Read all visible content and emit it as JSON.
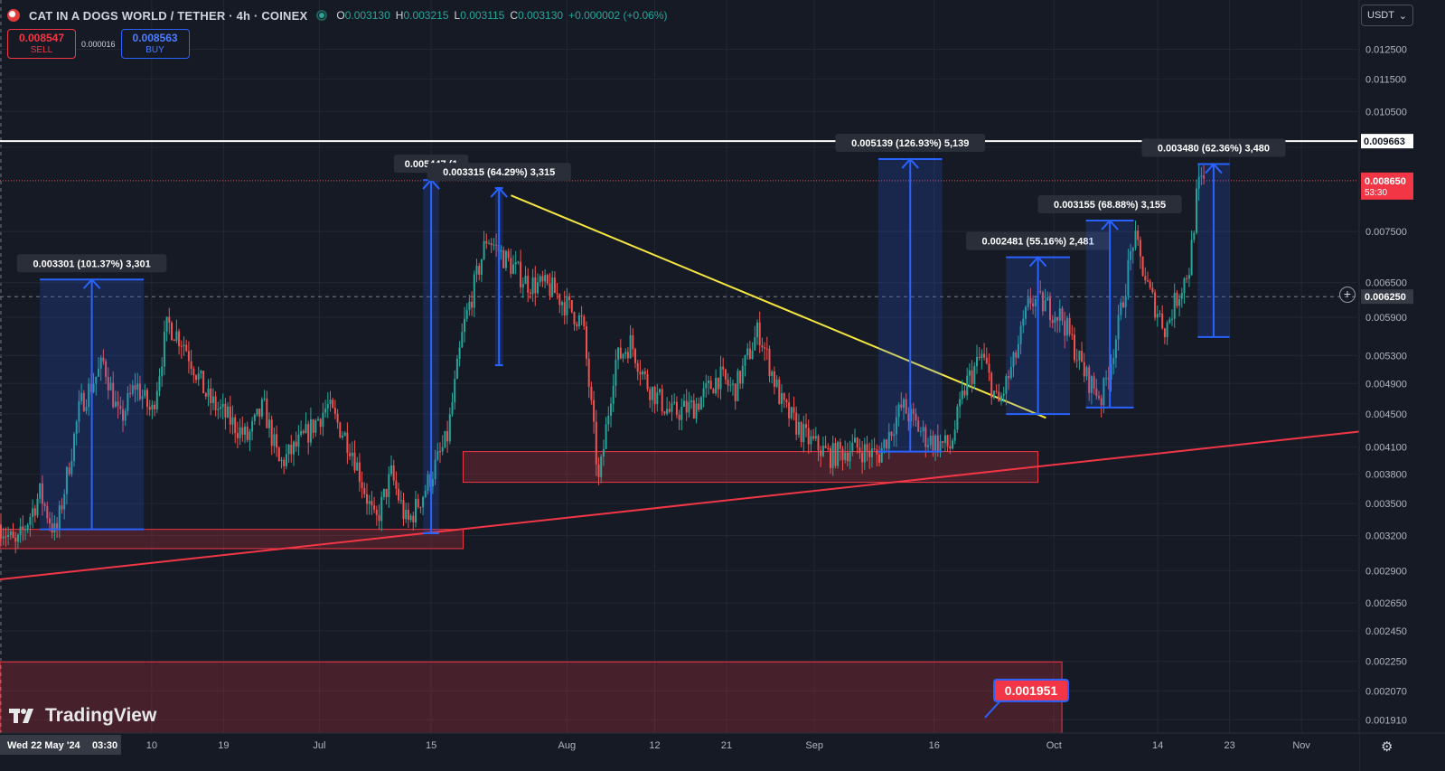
{
  "header": {
    "title": "CAT IN A DOGS WORLD / TETHER · 4h · COINEX",
    "ohlc": [
      {
        "k": "O",
        "v": "0.003130"
      },
      {
        "k": "H",
        "v": "0.003215"
      },
      {
        "k": "L",
        "v": "0.003115"
      },
      {
        "k": "C",
        "v": "0.003130"
      },
      {
        "k": "",
        "v": "+0.000002 (+0.06%)"
      }
    ]
  },
  "trade": {
    "sell_price": "0.008547",
    "sell_label": "SELL",
    "spread": "0.000016",
    "buy_price": "0.008563",
    "buy_label": "BUY"
  },
  "currency_selector": "USDT",
  "watermark": "TradingView",
  "colors": {
    "background": "#161a25",
    "up": "#26a69a",
    "down": "#ef5350",
    "zone": "#f23645",
    "measure": "#2962ff",
    "trendline_down": "#f5e642",
    "trendline_up": "#f23645",
    "resistance": "#ffffff",
    "grid": "#232734"
  },
  "chart_data": {
    "type": "candlestick",
    "symbol": "CAT IN A DOGS WORLD / TETHER",
    "interval": "4h",
    "exchange": "COINEX",
    "y_scale": "log",
    "ylim": [
      0.00184,
      0.0131
    ],
    "y_ticks": [
      "0.012500",
      "0.011500",
      "0.010500",
      "0.009663",
      "0.008650",
      "0.007500",
      "0.006500",
      "0.006250",
      "0.005900",
      "0.005300",
      "0.004900",
      "0.004500",
      "0.004100",
      "0.003800",
      "0.003500",
      "0.003200",
      "0.002900",
      "0.002650",
      "0.002450",
      "0.002250",
      "0.002070",
      "0.001910"
    ],
    "y_tick_values": [
      0.0125,
      0.0115,
      0.0105,
      0.0095,
      0.0075,
      0.0065,
      0.0059,
      0.0053,
      0.0049,
      0.0045,
      0.0041,
      0.0038,
      0.0035,
      0.0032,
      0.0029,
      0.00265,
      0.00245,
      0.00225,
      0.00207,
      0.00191
    ],
    "x_ticks": [
      "Wed 22 May '24",
      "03:30",
      "10",
      "19",
      "Jul",
      "15",
      "Aug",
      "12",
      "21",
      "Sep",
      "16",
      "Oct",
      "14",
      "23",
      "Nov"
    ],
    "x_start": "2024-05-22",
    "x_tick_dates": [
      "2024-06-10",
      "2024-06-19",
      "2024-07-01",
      "2024-07-15",
      "2024-08-01",
      "2024-08-12",
      "2024-08-21",
      "2024-09-01",
      "2024-09-16",
      "2024-10-01",
      "2024-10-14",
      "2024-10-23",
      "2024-11-01"
    ],
    "x_end": "2024-11-08",
    "current_price": {
      "label": "0.008650",
      "countdown": "53:30",
      "value": 0.00865
    },
    "crosshair_price": {
      "label": "0.006250",
      "value": 0.00625
    },
    "resistance_label": "0.009663",
    "resistance_level": 0.009663,
    "path": [
      [
        "2024-05-22",
        0.0033
      ],
      [
        "2024-05-24",
        0.0031
      ],
      [
        "2024-05-27",
        0.0036
      ],
      [
        "2024-05-29",
        0.0032
      ],
      [
        "2024-06-01",
        0.0046
      ],
      [
        "2024-06-04",
        0.0052
      ],
      [
        "2024-06-06",
        0.0044
      ],
      [
        "2024-06-08",
        0.0049
      ],
      [
        "2024-06-10",
        0.0045
      ],
      [
        "2024-06-12",
        0.0058
      ],
      [
        "2024-06-14",
        0.0055
      ],
      [
        "2024-06-17",
        0.0047
      ],
      [
        "2024-06-20",
        0.0044
      ],
      [
        "2024-06-22",
        0.0042
      ],
      [
        "2024-06-24",
        0.0046
      ],
      [
        "2024-06-26",
        0.0039
      ],
      [
        "2024-06-29",
        0.0042
      ],
      [
        "2024-07-02",
        0.0046
      ],
      [
        "2024-07-05",
        0.0041
      ],
      [
        "2024-07-08",
        0.0033
      ],
      [
        "2024-07-10",
        0.0038
      ],
      [
        "2024-07-12",
        0.0033
      ],
      [
        "2024-07-14",
        0.0036
      ],
      [
        "2024-07-17",
        0.0042
      ],
      [
        "2024-07-19",
        0.0057
      ],
      [
        "2024-07-22",
        0.0074
      ],
      [
        "2024-07-24",
        0.007
      ],
      [
        "2024-07-27",
        0.0065
      ],
      [
        "2024-07-30",
        0.0064
      ],
      [
        "2024-08-03",
        0.0058
      ],
      [
        "2024-08-05",
        0.0037
      ],
      [
        "2024-08-07",
        0.0052
      ],
      [
        "2024-08-09",
        0.0055
      ],
      [
        "2024-08-11",
        0.0049
      ],
      [
        "2024-08-14",
        0.0045
      ],
      [
        "2024-08-17",
        0.0046
      ],
      [
        "2024-08-20",
        0.005
      ],
      [
        "2024-08-22",
        0.0048
      ],
      [
        "2024-08-25",
        0.0057
      ],
      [
        "2024-08-28",
        0.0046
      ],
      [
        "2024-08-31",
        0.0042
      ],
      [
        "2024-09-03",
        0.004
      ],
      [
        "2024-09-06",
        0.0041
      ],
      [
        "2024-09-09",
        0.004
      ],
      [
        "2024-09-12",
        0.0046
      ],
      [
        "2024-09-15",
        0.0042
      ],
      [
        "2024-09-18",
        0.0041
      ],
      [
        "2024-09-20",
        0.0049
      ],
      [
        "2024-09-22",
        0.0053
      ],
      [
        "2024-09-24",
        0.0046
      ],
      [
        "2024-09-26",
        0.0052
      ],
      [
        "2024-09-28",
        0.0062
      ],
      [
        "2024-09-30",
        0.0061
      ],
      [
        "2024-10-02",
        0.0059
      ],
      [
        "2024-10-05",
        0.005
      ],
      [
        "2024-10-07",
        0.0047
      ],
      [
        "2024-10-09",
        0.0057
      ],
      [
        "2024-10-11",
        0.0074
      ],
      [
        "2024-10-13",
        0.0063
      ],
      [
        "2024-10-15",
        0.0057
      ],
      [
        "2024-10-16",
        0.0061
      ],
      [
        "2024-10-18",
        0.0068
      ],
      [
        "2024-10-19",
        0.0085
      ],
      [
        "2024-10-20",
        0.00865
      ]
    ],
    "measurements": [
      {
        "label": "0.003301 (101.37%) 3,301",
        "from": [
          "2024-05-27",
          "2024-06-09"
        ],
        "low": 0.003256,
        "high": 0.006557
      },
      {
        "label": "0.005447 (1",
        "from": [
          "2024-07-14",
          "2024-07-16"
        ],
        "low": 0.00322,
        "high": 0.008667
      },
      {
        "label": "0.003315 (64.29%) 3,315",
        "from": [
          "2024-07-23",
          "2024-07-24"
        ],
        "low": 0.005157,
        "high": 0.008472
      },
      {
        "label": "0.005139 (126.93%) 5,139",
        "from": [
          "2024-09-09",
          "2024-09-17"
        ],
        "low": 0.004049,
        "high": 0.009188
      },
      {
        "label": "0.002481 (55.16%) 2,481",
        "from": [
          "2024-09-25",
          "2024-10-03"
        ],
        "low": 0.004498,
        "high": 0.006979
      },
      {
        "label": "0.003155 (68.88%) 3,155",
        "from": [
          "2024-10-05",
          "2024-10-11"
        ],
        "low": 0.00458,
        "high": 0.007735
      },
      {
        "label": "0.003480 (62.36%) 3,480",
        "from": [
          "2024-10-19",
          "2024-10-23"
        ],
        "low": 0.005581,
        "high": 0.009061
      }
    ],
    "zones": [
      {
        "from": "2024-05-22",
        "to": "2024-07-19",
        "low": 0.003085,
        "high": 0.003256
      },
      {
        "from": "2024-07-19",
        "to": "2024-09-29",
        "low": 0.003715,
        "high": 0.004049
      },
      {
        "from": "2024-05-22",
        "to": "2024-10-02",
        "low": 0.00184,
        "high": 0.002246
      }
    ],
    "trendlines": [
      {
        "color": "yellow",
        "from": [
          "2024-07-25",
          0.0083
        ],
        "to": [
          "2024-09-30",
          0.00445
        ]
      },
      {
        "color": "red",
        "from": [
          "2024-05-22",
          0.00283
        ],
        "to": [
          "2024-11-09",
          0.00429
        ]
      }
    ],
    "target_label": "0.001951",
    "target_value": 0.001951
  }
}
